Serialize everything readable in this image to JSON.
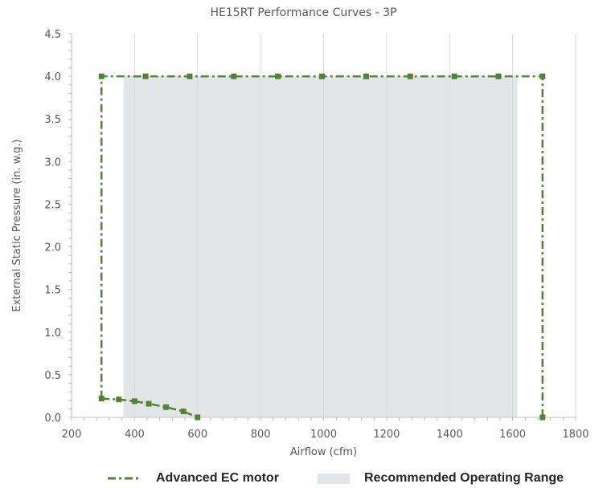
{
  "chart_data": {
    "type": "line",
    "title": "HE15RT Performance Curves - 3P",
    "xlabel": "Airflow (cfm)",
    "ylabel": "External Static Pressure (in. w.g.)",
    "xlim": [
      200,
      1800
    ],
    "ylim": [
      0,
      4.5
    ],
    "x_ticks": [
      "200",
      "400",
      "600",
      "800",
      "1000",
      "1200",
      "1400",
      "1600",
      "1800"
    ],
    "y_ticks": [
      "0.0",
      "0.5",
      "1.0",
      "1.5",
      "2.0",
      "2.5",
      "3.0",
      "3.5",
      "4.0",
      "4.5"
    ],
    "grid": true,
    "legend_position": "bottom",
    "series": [
      {
        "name": "Advanced EC motor",
        "color": "#538135",
        "line_style": "dash-dot",
        "marker": "square",
        "points": [
          [
            295,
            4.0
          ],
          [
            435,
            4.0
          ],
          [
            575,
            4.0
          ],
          [
            715,
            4.0
          ],
          [
            855,
            4.0
          ],
          [
            995,
            4.0
          ],
          [
            1135,
            4.0
          ],
          [
            1275,
            4.0
          ],
          [
            1415,
            4.0
          ],
          [
            1555,
            4.0
          ],
          [
            1695,
            4.0
          ],
          [
            1695,
            0.0
          ]
        ],
        "segments": [
          [
            [
              295,
              0.22
            ],
            [
              295,
              4.0
            ]
          ],
          [
            [
              1695,
              4.0
            ],
            [
              1695,
              0.0
            ]
          ]
        ],
        "low_curve": [
          [
            295,
            0.22
          ],
          [
            350,
            0.21
          ],
          [
            400,
            0.19
          ],
          [
            445,
            0.16
          ],
          [
            500,
            0.12
          ],
          [
            555,
            0.07
          ],
          [
            600,
            0.0
          ]
        ]
      }
    ],
    "areas": [
      {
        "name": "Recommended Operating Range",
        "color": "#e3e6e7",
        "x_range": [
          365,
          1615
        ],
        "y_range": [
          0,
          4.0
        ]
      }
    ]
  },
  "legend": {
    "items": [
      {
        "label": "Advanced EC motor"
      },
      {
        "label": "Recommended Operating Range"
      }
    ]
  }
}
